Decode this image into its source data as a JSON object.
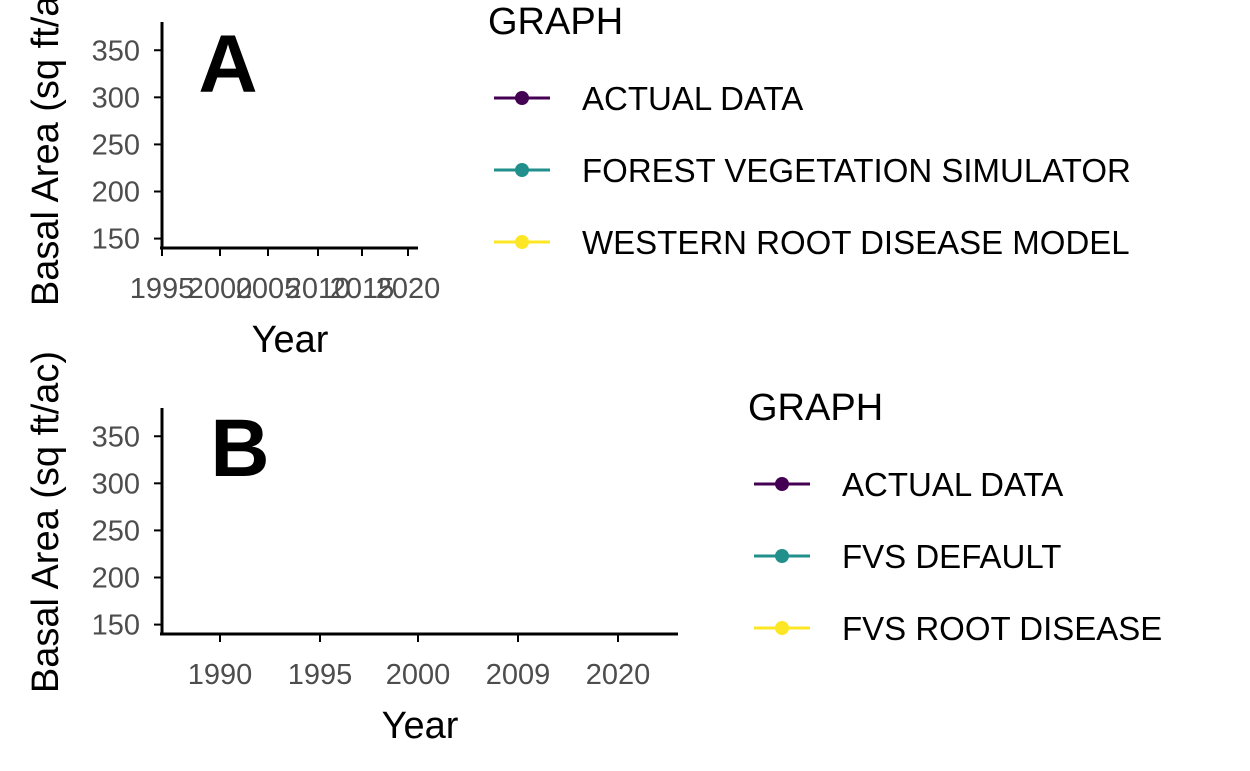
{
  "colors": {
    "actual": "#440154",
    "fvs": "#21908c",
    "rd": "#fde725"
  },
  "chart_data": [
    {
      "type": "line",
      "panel_label": "A",
      "xlabel": "Year",
      "ylabel": "Basal Area (sq ft/ac)",
      "x_ticks": [
        "1995",
        "2000",
        "2005",
        "2010",
        "2015",
        "2020"
      ],
      "y_ticks": [
        150,
        200,
        250,
        300,
        350
      ],
      "ylim": [
        140,
        380
      ],
      "legend_title": "GRAPH",
      "legend_position": "right",
      "series": [
        {
          "name": "ACTUAL DATA",
          "color": "#440154",
          "values": []
        },
        {
          "name": "FOREST VEGETATION SIMULATOR",
          "color": "#21908c",
          "values": []
        },
        {
          "name": "WESTERN ROOT DISEASE MODEL",
          "color": "#fde725",
          "values": []
        }
      ]
    },
    {
      "type": "line",
      "panel_label": "B",
      "xlabel": "Year",
      "ylabel": "Basal Area (sq ft/ac)",
      "x_ticks": [
        "1990",
        "1995",
        "2000",
        "2009",
        "2020"
      ],
      "y_ticks": [
        150,
        200,
        250,
        300,
        350
      ],
      "ylim": [
        140,
        380
      ],
      "legend_title": "GRAPH",
      "legend_position": "right",
      "series": [
        {
          "name": "ACTUAL DATA",
          "color": "#440154",
          "values": []
        },
        {
          "name": "FVS DEFAULT",
          "color": "#21908c",
          "values": []
        },
        {
          "name": "FVS ROOT DISEASE",
          "color": "#fde725",
          "values": []
        }
      ]
    }
  ]
}
